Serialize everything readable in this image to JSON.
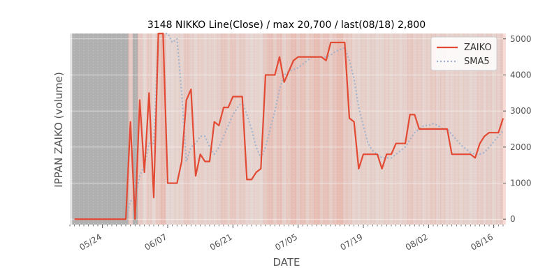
{
  "chart_data": {
    "type": "line",
    "title": "3148 NIKKO Line(Close) / max 20,700 / last(08/18) 2,800",
    "xlabel": "DATE",
    "ylabel": "IPPAN ZAIKO (volume)",
    "ylim": [
      -150,
      5150
    ],
    "xlim": [
      "2019-05-17",
      "2019-08-18"
    ],
    "yticks": [
      0,
      1000,
      2000,
      3000,
      4000,
      5000
    ],
    "ytick_labels": [
      "0",
      "1000",
      "2000",
      "3000",
      "4000",
      "5000"
    ],
    "xticks": [
      "2019-05-24",
      "2019-06-07",
      "2019-06-21",
      "2019-07-05",
      "2019-07-19",
      "2019-08-02",
      "2019-08-16"
    ],
    "xtick_labels": [
      "05/24",
      "06/07",
      "06/21",
      "07/05",
      "07/19",
      "08/02",
      "08/16"
    ],
    "grid": true,
    "legend_position": "top-right",
    "series": [
      {
        "name": "ZAIKO",
        "color": "#e24a33",
        "style": "solid",
        "points": [
          [
            "2019-05-18",
            0
          ],
          [
            "2019-05-19",
            0
          ],
          [
            "2019-05-20",
            0
          ],
          [
            "2019-05-21",
            0
          ],
          [
            "2019-05-22",
            0
          ],
          [
            "2019-05-23",
            0
          ],
          [
            "2019-05-24",
            0
          ],
          [
            "2019-05-25",
            0
          ],
          [
            "2019-05-26",
            0
          ],
          [
            "2019-05-27",
            0
          ],
          [
            "2019-05-28",
            0
          ],
          [
            "2019-05-29",
            0
          ],
          [
            "2019-05-30",
            2700
          ],
          [
            "2019-05-31",
            0
          ],
          [
            "2019-06-01",
            3300
          ],
          [
            "2019-06-02",
            1300
          ],
          [
            "2019-06-03",
            3500
          ],
          [
            "2019-06-04",
            600
          ],
          [
            "2019-06-05",
            5150
          ],
          [
            "2019-06-06",
            5150
          ],
          [
            "2019-06-07",
            1000
          ],
          [
            "2019-06-08",
            1000
          ],
          [
            "2019-06-09",
            1000
          ],
          [
            "2019-06-10",
            1600
          ],
          [
            "2019-06-11",
            3300
          ],
          [
            "2019-06-12",
            3600
          ],
          [
            "2019-06-13",
            1200
          ],
          [
            "2019-06-14",
            1800
          ],
          [
            "2019-06-15",
            1600
          ],
          [
            "2019-06-16",
            1600
          ],
          [
            "2019-06-17",
            2700
          ],
          [
            "2019-06-18",
            2600
          ],
          [
            "2019-06-19",
            3100
          ],
          [
            "2019-06-20",
            3100
          ],
          [
            "2019-06-21",
            3400
          ],
          [
            "2019-06-22",
            3400
          ],
          [
            "2019-06-23",
            3400
          ],
          [
            "2019-06-24",
            1100
          ],
          [
            "2019-06-25",
            1100
          ],
          [
            "2019-06-26",
            1300
          ],
          [
            "2019-06-27",
            1400
          ],
          [
            "2019-06-28",
            4000
          ],
          [
            "2019-06-29",
            4000
          ],
          [
            "2019-06-30",
            4000
          ],
          [
            "2019-07-01",
            4500
          ],
          [
            "2019-07-02",
            3800
          ],
          [
            "2019-07-03",
            4100
          ],
          [
            "2019-07-04",
            4400
          ],
          [
            "2019-07-05",
            4500
          ],
          [
            "2019-07-06",
            4500
          ],
          [
            "2019-07-07",
            4500
          ],
          [
            "2019-07-08",
            4500
          ],
          [
            "2019-07-09",
            4500
          ],
          [
            "2019-07-10",
            4500
          ],
          [
            "2019-07-11",
            4400
          ],
          [
            "2019-07-12",
            4900
          ],
          [
            "2019-07-13",
            4900
          ],
          [
            "2019-07-14",
            4900
          ],
          [
            "2019-07-15",
            4900
          ],
          [
            "2019-07-16",
            2800
          ],
          [
            "2019-07-17",
            2700
          ],
          [
            "2019-07-18",
            1400
          ],
          [
            "2019-07-19",
            1800
          ],
          [
            "2019-07-20",
            1800
          ],
          [
            "2019-07-21",
            1800
          ],
          [
            "2019-07-22",
            1800
          ],
          [
            "2019-07-23",
            1400
          ],
          [
            "2019-07-24",
            1800
          ],
          [
            "2019-07-25",
            1800
          ],
          [
            "2019-07-26",
            2100
          ],
          [
            "2019-07-27",
            2100
          ],
          [
            "2019-07-28",
            2100
          ],
          [
            "2019-07-29",
            2900
          ],
          [
            "2019-07-30",
            2900
          ],
          [
            "2019-07-31",
            2500
          ],
          [
            "2019-08-01",
            2500
          ],
          [
            "2019-08-02",
            2500
          ],
          [
            "2019-08-03",
            2500
          ],
          [
            "2019-08-04",
            2500
          ],
          [
            "2019-08-05",
            2500
          ],
          [
            "2019-08-06",
            2500
          ],
          [
            "2019-08-07",
            1800
          ],
          [
            "2019-08-08",
            1800
          ],
          [
            "2019-08-09",
            1800
          ],
          [
            "2019-08-10",
            1800
          ],
          [
            "2019-08-11",
            1800
          ],
          [
            "2019-08-12",
            1700
          ],
          [
            "2019-08-13",
            2100
          ],
          [
            "2019-08-14",
            2300
          ],
          [
            "2019-08-15",
            2400
          ],
          [
            "2019-08-16",
            2400
          ],
          [
            "2019-08-17",
            2400
          ],
          [
            "2019-08-18",
            2800
          ]
        ]
      },
      {
        "name": "SMA5",
        "color": "#9ab0cc",
        "style": "dotted",
        "points": [
          [
            "2019-05-18",
            0
          ],
          [
            "2019-05-19",
            0
          ],
          [
            "2019-05-20",
            0
          ],
          [
            "2019-05-21",
            0
          ],
          [
            "2019-05-22",
            0
          ],
          [
            "2019-05-23",
            0
          ],
          [
            "2019-05-24",
            0
          ],
          [
            "2019-05-25",
            0
          ],
          [
            "2019-05-26",
            0
          ],
          [
            "2019-05-27",
            0
          ],
          [
            "2019-05-28",
            0
          ],
          [
            "2019-05-29",
            0
          ],
          [
            "2019-05-30",
            500
          ],
          [
            "2019-05-31",
            550
          ],
          [
            "2019-06-01",
            1200
          ],
          [
            "2019-06-02",
            1500
          ],
          [
            "2019-06-03",
            2100
          ],
          [
            "2019-06-04",
            2100
          ],
          [
            "2019-06-05",
            5150
          ],
          [
            "2019-06-06",
            5150
          ],
          [
            "2019-06-07",
            5150
          ],
          [
            "2019-06-08",
            4900
          ],
          [
            "2019-06-09",
            5000
          ],
          [
            "2019-06-10",
            3500
          ],
          [
            "2019-06-11",
            1600
          ],
          [
            "2019-06-12",
            2000
          ],
          [
            "2019-06-13",
            2100
          ],
          [
            "2019-06-14",
            2300
          ],
          [
            "2019-06-15",
            2300
          ],
          [
            "2019-06-16",
            2000
          ],
          [
            "2019-06-17",
            1800
          ],
          [
            "2019-06-18",
            2000
          ],
          [
            "2019-06-19",
            2300
          ],
          [
            "2019-06-20",
            2600
          ],
          [
            "2019-06-21",
            2900
          ],
          [
            "2019-06-22",
            3100
          ],
          [
            "2019-06-23",
            3250
          ],
          [
            "2019-06-24",
            2900
          ],
          [
            "2019-06-25",
            2500
          ],
          [
            "2019-06-26",
            2000
          ],
          [
            "2019-06-27",
            1700
          ],
          [
            "2019-06-28",
            2000
          ],
          [
            "2019-06-29",
            2500
          ],
          [
            "2019-06-30",
            3000
          ],
          [
            "2019-07-01",
            3600
          ],
          [
            "2019-07-02",
            4000
          ],
          [
            "2019-07-03",
            4100
          ],
          [
            "2019-07-04",
            4150
          ],
          [
            "2019-07-05",
            4200
          ],
          [
            "2019-07-06",
            4300
          ],
          [
            "2019-07-07",
            4400
          ],
          [
            "2019-07-08",
            4500
          ],
          [
            "2019-07-09",
            4500
          ],
          [
            "2019-07-10",
            4500
          ],
          [
            "2019-07-11",
            4500
          ],
          [
            "2019-07-12",
            4550
          ],
          [
            "2019-07-13",
            4650
          ],
          [
            "2019-07-14",
            4700
          ],
          [
            "2019-07-15",
            4750
          ],
          [
            "2019-07-16",
            4400
          ],
          [
            "2019-07-17",
            3900
          ],
          [
            "2019-07-18",
            3100
          ],
          [
            "2019-07-19",
            2600
          ],
          [
            "2019-07-20",
            2100
          ],
          [
            "2019-07-21",
            1900
          ],
          [
            "2019-07-22",
            1800
          ],
          [
            "2019-07-23",
            1700
          ],
          [
            "2019-07-24",
            1700
          ],
          [
            "2019-07-25",
            1700
          ],
          [
            "2019-07-26",
            1800
          ],
          [
            "2019-07-27",
            1900
          ],
          [
            "2019-07-28",
            2000
          ],
          [
            "2019-07-29",
            2200
          ],
          [
            "2019-07-30",
            2400
          ],
          [
            "2019-07-31",
            2500
          ],
          [
            "2019-08-01",
            2600
          ],
          [
            "2019-08-02",
            2600
          ],
          [
            "2019-08-03",
            2650
          ],
          [
            "2019-08-04",
            2600
          ],
          [
            "2019-08-05",
            2500
          ],
          [
            "2019-08-06",
            2500
          ],
          [
            "2019-08-07",
            2350
          ],
          [
            "2019-08-08",
            2200
          ],
          [
            "2019-08-09",
            2050
          ],
          [
            "2019-08-10",
            1950
          ],
          [
            "2019-08-11",
            1850
          ],
          [
            "2019-08-12",
            1800
          ],
          [
            "2019-08-13",
            1800
          ],
          [
            "2019-08-14",
            1850
          ],
          [
            "2019-08-15",
            2000
          ],
          [
            "2019-08-16",
            2150
          ],
          [
            "2019-08-17",
            2300
          ],
          [
            "2019-08-18",
            2450
          ]
        ]
      }
    ]
  },
  "style": {
    "plot_background": "#e5e5e5",
    "gray_band_color": "#b0b0b0",
    "shade_color": "#e8866f",
    "grid_color": "#ffffff",
    "text_color": "#555555"
  }
}
